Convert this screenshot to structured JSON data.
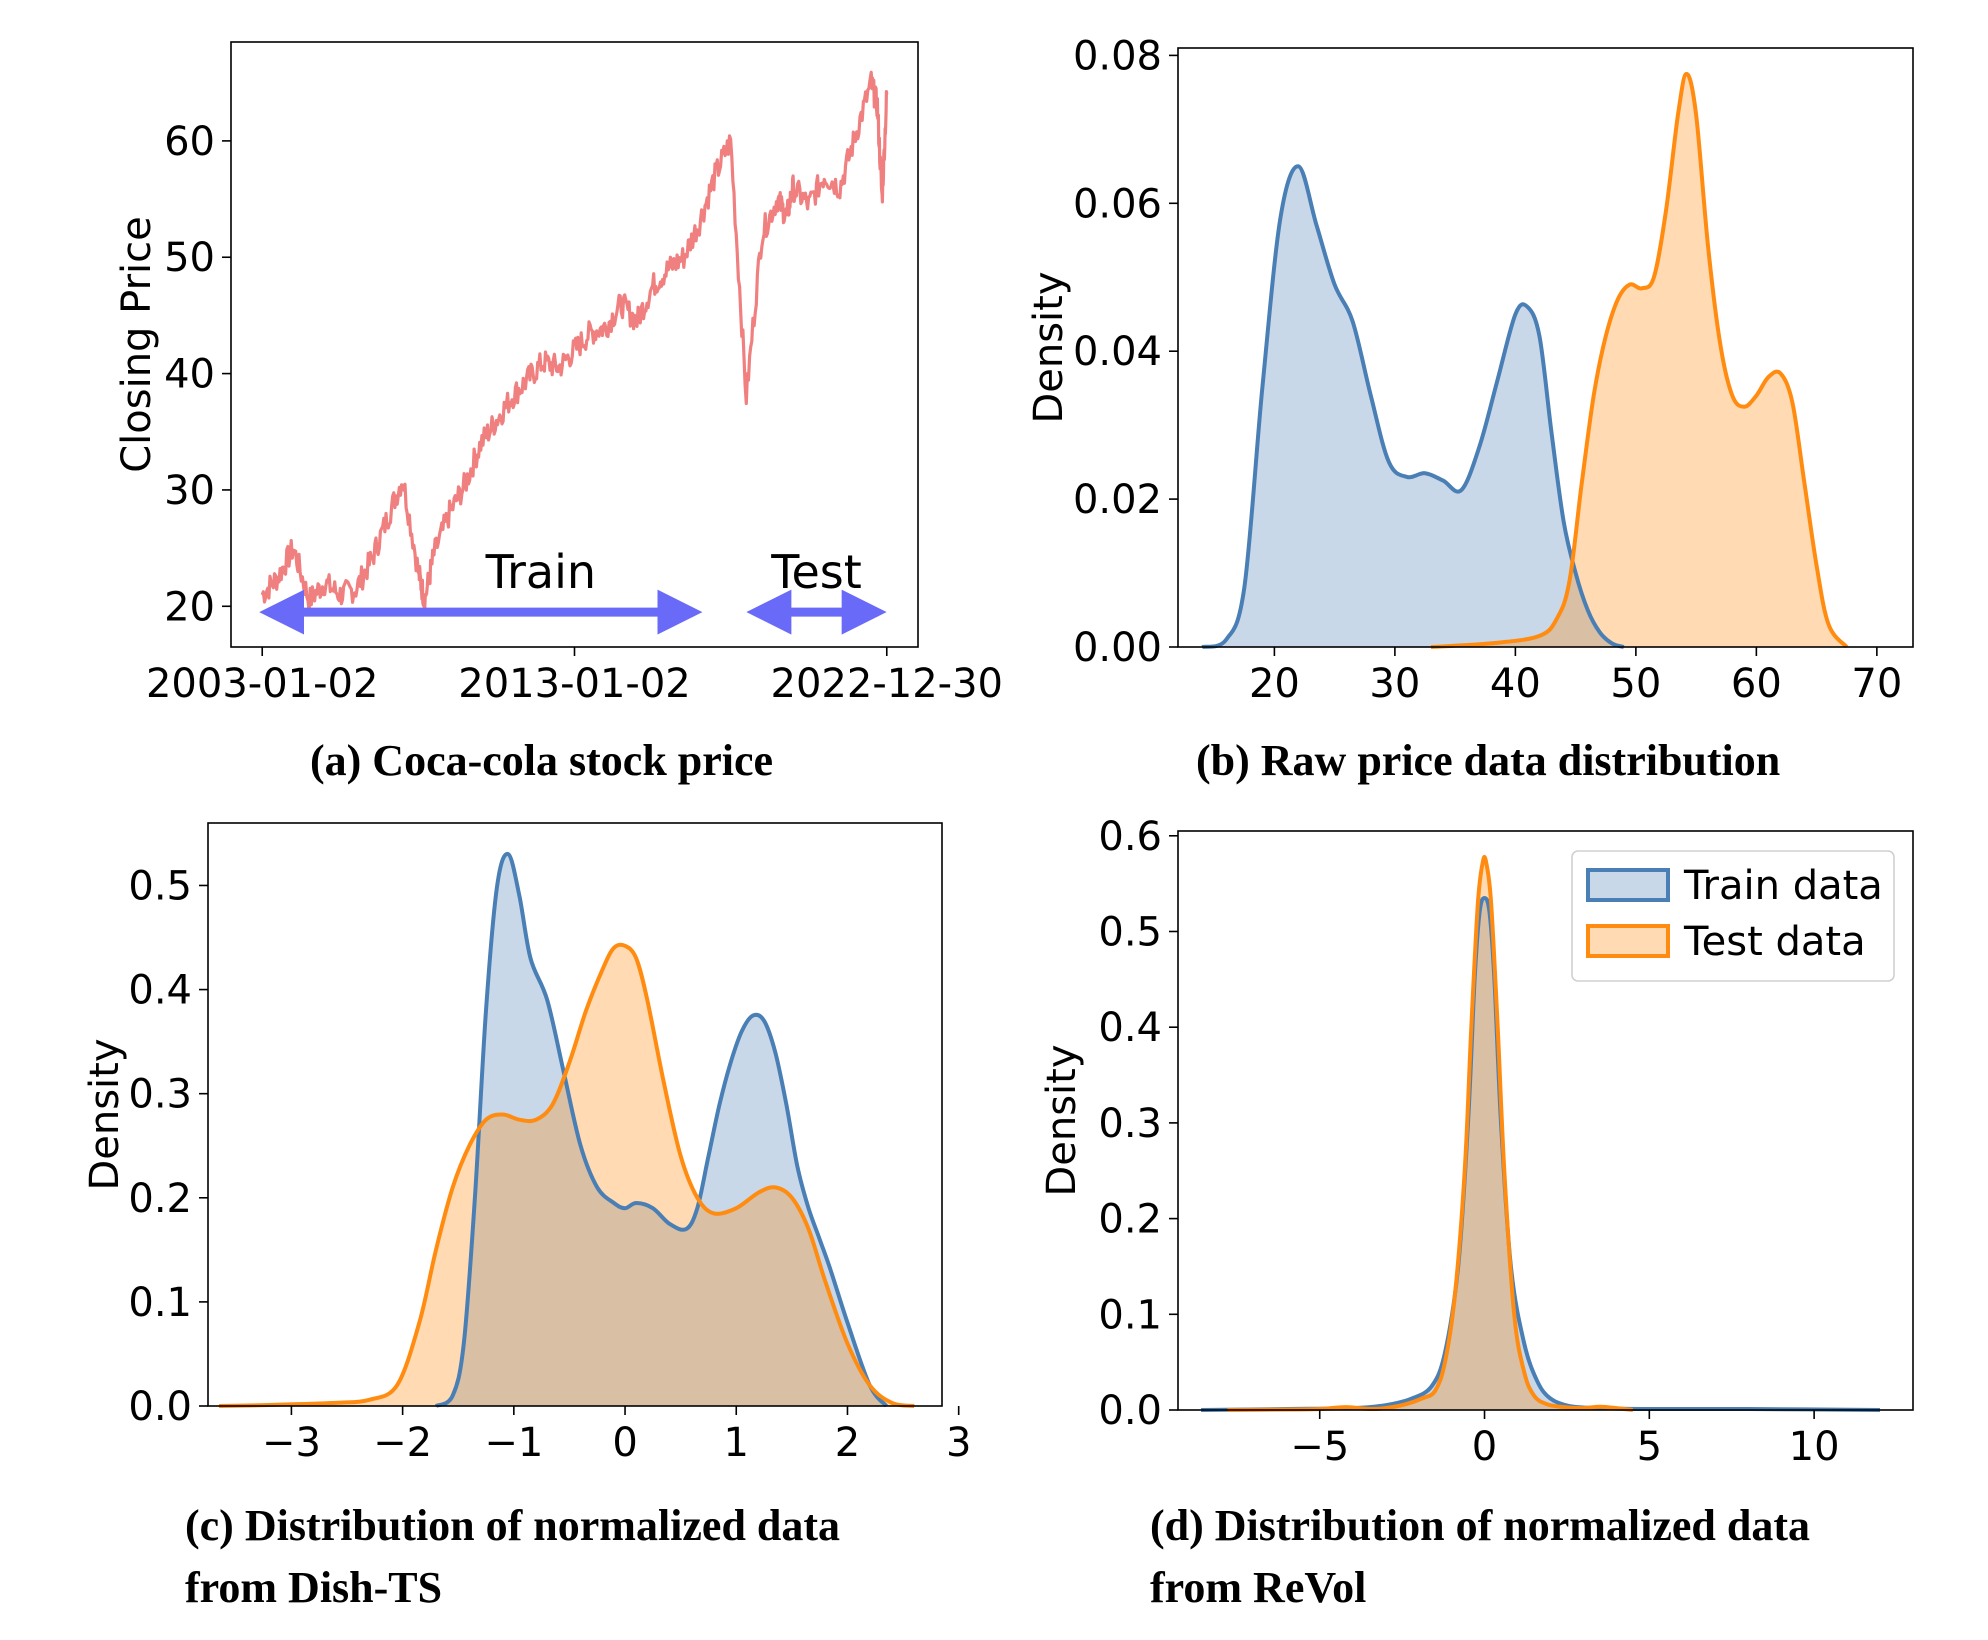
{
  "captions": {
    "a": "(a) Coca-cola stock price",
    "b": "(b) Raw price data distribution",
    "c_line1": "(c) Distribution of normalized data",
    "c_line2": "from Dish-TS",
    "d_line1": "(d) Distribution of normalized data",
    "d_line2": "from ReVol"
  },
  "colors": {
    "price_line": "#f08080",
    "train": "#4a7fb5",
    "train_fill": "#c6d6e7",
    "test": "#ff8c10",
    "test_fill": "#fdd6a6",
    "overlap": "#b8a68c",
    "arrow": "#6a6af8"
  },
  "chart_data": [
    {
      "id": "a",
      "type": "line",
      "title": "(a) Coca-cola stock price",
      "xlabel": "",
      "ylabel": "Closing Price",
      "x_ticks": [
        "2003-01-02",
        "2013-01-02",
        "2022-12-30"
      ],
      "y_ticks": [
        20,
        30,
        40,
        50,
        60
      ],
      "xlim": [
        -1,
        21
      ],
      "ylim": [
        16.5,
        68.5
      ],
      "series": [
        {
          "name": "Closing Price",
          "x": [
            0,
            0.5,
            1,
            1.5,
            2,
            2.5,
            3,
            3.5,
            4,
            4.5,
            5,
            5.2,
            5.5,
            6,
            6.5,
            7,
            7.5,
            8,
            8.5,
            9,
            9.5,
            10,
            10.5,
            11,
            11.5,
            12,
            12.5,
            13,
            13.5,
            14,
            14.5,
            15,
            15.5,
            16,
            16.5,
            16.8,
            17,
            17.5,
            18,
            18.5,
            19,
            19.5,
            19.7,
            19.85,
            20
          ],
          "y": [
            21,
            22.5,
            25,
            20.5,
            22,
            21,
            21.5,
            24,
            27.5,
            31,
            23,
            20.5,
            24.5,
            28,
            30.5,
            34,
            36,
            38,
            39.5,
            41,
            40.5,
            42,
            43.5,
            44,
            46,
            44.5,
            47.5,
            49,
            50,
            53,
            57,
            60,
            38,
            52,
            55,
            53.5,
            56,
            54.5,
            57,
            56,
            60.5,
            65,
            63,
            55,
            64
          ]
        }
      ],
      "annotations": [
        {
          "text": "Train",
          "x_span": [
            0,
            14
          ]
        },
        {
          "text": "Test",
          "x_span": [
            15.6,
            19.9
          ]
        }
      ]
    },
    {
      "id": "b",
      "type": "area",
      "title": "(b) Raw price data distribution",
      "xlabel": "",
      "ylabel": "Density",
      "x_ticks": [
        20,
        30,
        40,
        50,
        60,
        70
      ],
      "y_ticks": [
        "0.00",
        "0.02",
        "0.04",
        "0.06",
        "0.08"
      ],
      "xlim": [
        12,
        73
      ],
      "ylim": [
        0,
        0.081
      ],
      "series": [
        {
          "name": "Train data",
          "x": [
            14,
            16,
            17.5,
            19,
            20.5,
            22,
            23.5,
            25,
            26.5,
            28,
            29.5,
            31,
            32.5,
            34,
            35.5,
            37,
            38.5,
            40,
            41,
            42,
            43,
            44,
            45,
            46,
            47,
            48,
            49
          ],
          "y": [
            0,
            0.001,
            0.008,
            0.035,
            0.058,
            0.065,
            0.057,
            0.049,
            0.044,
            0.034,
            0.025,
            0.023,
            0.0235,
            0.0225,
            0.0212,
            0.027,
            0.036,
            0.045,
            0.046,
            0.042,
            0.029,
            0.017,
            0.01,
            0.005,
            0.002,
            0.0005,
            0
          ]
        },
        {
          "name": "Test data",
          "x": [
            33,
            38,
            42,
            43.5,
            44.5,
            45.5,
            46.5,
            47.5,
            48.5,
            49.5,
            50.5,
            51.5,
            52.5,
            53.5,
            54.2,
            55,
            56,
            57,
            58,
            59,
            60,
            61,
            62,
            63,
            64,
            65,
            66,
            67.5
          ],
          "y": [
            0,
            0.0005,
            0.0015,
            0.004,
            0.009,
            0.022,
            0.034,
            0.042,
            0.047,
            0.049,
            0.0485,
            0.05,
            0.059,
            0.072,
            0.0775,
            0.072,
            0.054,
            0.041,
            0.034,
            0.0325,
            0.034,
            0.0365,
            0.037,
            0.033,
            0.022,
            0.011,
            0.003,
            0
          ]
        }
      ]
    },
    {
      "id": "c",
      "type": "area",
      "title": "(c) Distribution of normalized data from Dish-TS",
      "xlabel": "",
      "ylabel": "Density",
      "x_ticks": [
        "−3",
        "−2",
        "−1",
        "0",
        "1",
        "2",
        "3"
      ],
      "x_tick_values": [
        -3,
        -2,
        -1,
        0,
        1,
        2,
        3
      ],
      "y_ticks": [
        "0.0",
        "0.1",
        "0.2",
        "0.3",
        "0.4",
        "0.5"
      ],
      "xlim": [
        -3.75,
        2.85
      ],
      "ylim": [
        0,
        0.56
      ],
      "series": [
        {
          "name": "Train data",
          "x": [
            -1.7,
            -1.55,
            -1.45,
            -1.35,
            -1.25,
            -1.15,
            -1.05,
            -0.95,
            -0.85,
            -0.7,
            -0.55,
            -0.4,
            -0.25,
            -0.1,
            0,
            0.1,
            0.25,
            0.4,
            0.55,
            0.65,
            0.75,
            0.85,
            0.95,
            1.05,
            1.15,
            1.25,
            1.35,
            1.45,
            1.55,
            1.65,
            1.75,
            1.85,
            2.0,
            2.2,
            2.35
          ],
          "y": [
            0,
            0.01,
            0.06,
            0.2,
            0.38,
            0.5,
            0.53,
            0.49,
            0.43,
            0.39,
            0.32,
            0.25,
            0.21,
            0.195,
            0.19,
            0.195,
            0.19,
            0.175,
            0.17,
            0.19,
            0.24,
            0.29,
            0.33,
            0.36,
            0.375,
            0.37,
            0.34,
            0.29,
            0.23,
            0.19,
            0.16,
            0.13,
            0.08,
            0.02,
            0
          ]
        },
        {
          "name": "Test data",
          "x": [
            -3.65,
            -3.2,
            -2.6,
            -2.3,
            -2.05,
            -1.85,
            -1.7,
            -1.55,
            -1.4,
            -1.25,
            -1.1,
            -0.95,
            -0.8,
            -0.65,
            -0.5,
            -0.35,
            -0.2,
            -0.1,
            0,
            0.1,
            0.2,
            0.35,
            0.5,
            0.65,
            0.8,
            1.0,
            1.2,
            1.35,
            1.5,
            1.65,
            1.8,
            2.0,
            2.2,
            2.4,
            2.6
          ],
          "y": [
            0,
            0.001,
            0.003,
            0.006,
            0.02,
            0.08,
            0.15,
            0.21,
            0.25,
            0.275,
            0.28,
            0.275,
            0.275,
            0.29,
            0.33,
            0.38,
            0.42,
            0.44,
            0.442,
            0.43,
            0.39,
            0.31,
            0.24,
            0.2,
            0.185,
            0.19,
            0.205,
            0.21,
            0.2,
            0.17,
            0.12,
            0.06,
            0.02,
            0.003,
            0
          ]
        }
      ]
    },
    {
      "id": "d",
      "type": "area",
      "title": "(d) Distribution of normalized data from ReVol",
      "xlabel": "",
      "ylabel": "Density",
      "x_ticks": [
        "−5",
        "0",
        "5",
        "10"
      ],
      "x_tick_values": [
        -5,
        0,
        5,
        10
      ],
      "y_ticks": [
        "0.0",
        "0.1",
        "0.2",
        "0.3",
        "0.4",
        "0.5",
        "0.6"
      ],
      "xlim": [
        -9.3,
        13
      ],
      "ylim": [
        0,
        0.605
      ],
      "legend": {
        "position": "top-right",
        "entries": [
          "Train data",
          "Test data"
        ]
      },
      "series": [
        {
          "name": "Train data",
          "x": [
            -8.6,
            -6,
            -4,
            -3,
            -2.2,
            -1.6,
            -1.2,
            -0.8,
            -0.5,
            -0.3,
            -0.15,
            0,
            0.15,
            0.3,
            0.5,
            0.8,
            1.2,
            1.6,
            2.0,
            2.6,
            3.5,
            5,
            8,
            12
          ],
          "y": [
            0,
            0.001,
            0.002,
            0.005,
            0.012,
            0.025,
            0.06,
            0.15,
            0.3,
            0.45,
            0.52,
            0.535,
            0.52,
            0.45,
            0.3,
            0.15,
            0.07,
            0.03,
            0.012,
            0.004,
            0.002,
            0.001,
            0.001,
            0
          ]
        },
        {
          "name": "Test data",
          "x": [
            -7.8,
            -6,
            -5,
            -4.2,
            -3.5,
            -3,
            -2.4,
            -1.9,
            -1.5,
            -1.2,
            -0.9,
            -0.6,
            -0.4,
            -0.2,
            -0.05,
            0.05,
            0.2,
            0.4,
            0.6,
            0.9,
            1.2,
            1.5,
            1.9,
            2.4,
            3,
            3.5,
            4,
            4.5
          ],
          "y": [
            0,
            0.0005,
            0.001,
            0.003,
            0.001,
            0.002,
            0.006,
            0.012,
            0.02,
            0.05,
            0.12,
            0.25,
            0.4,
            0.53,
            0.573,
            0.572,
            0.53,
            0.4,
            0.25,
            0.1,
            0.04,
            0.015,
            0.006,
            0.003,
            0.002,
            0.0035,
            0.002,
            0
          ]
        }
      ]
    }
  ]
}
